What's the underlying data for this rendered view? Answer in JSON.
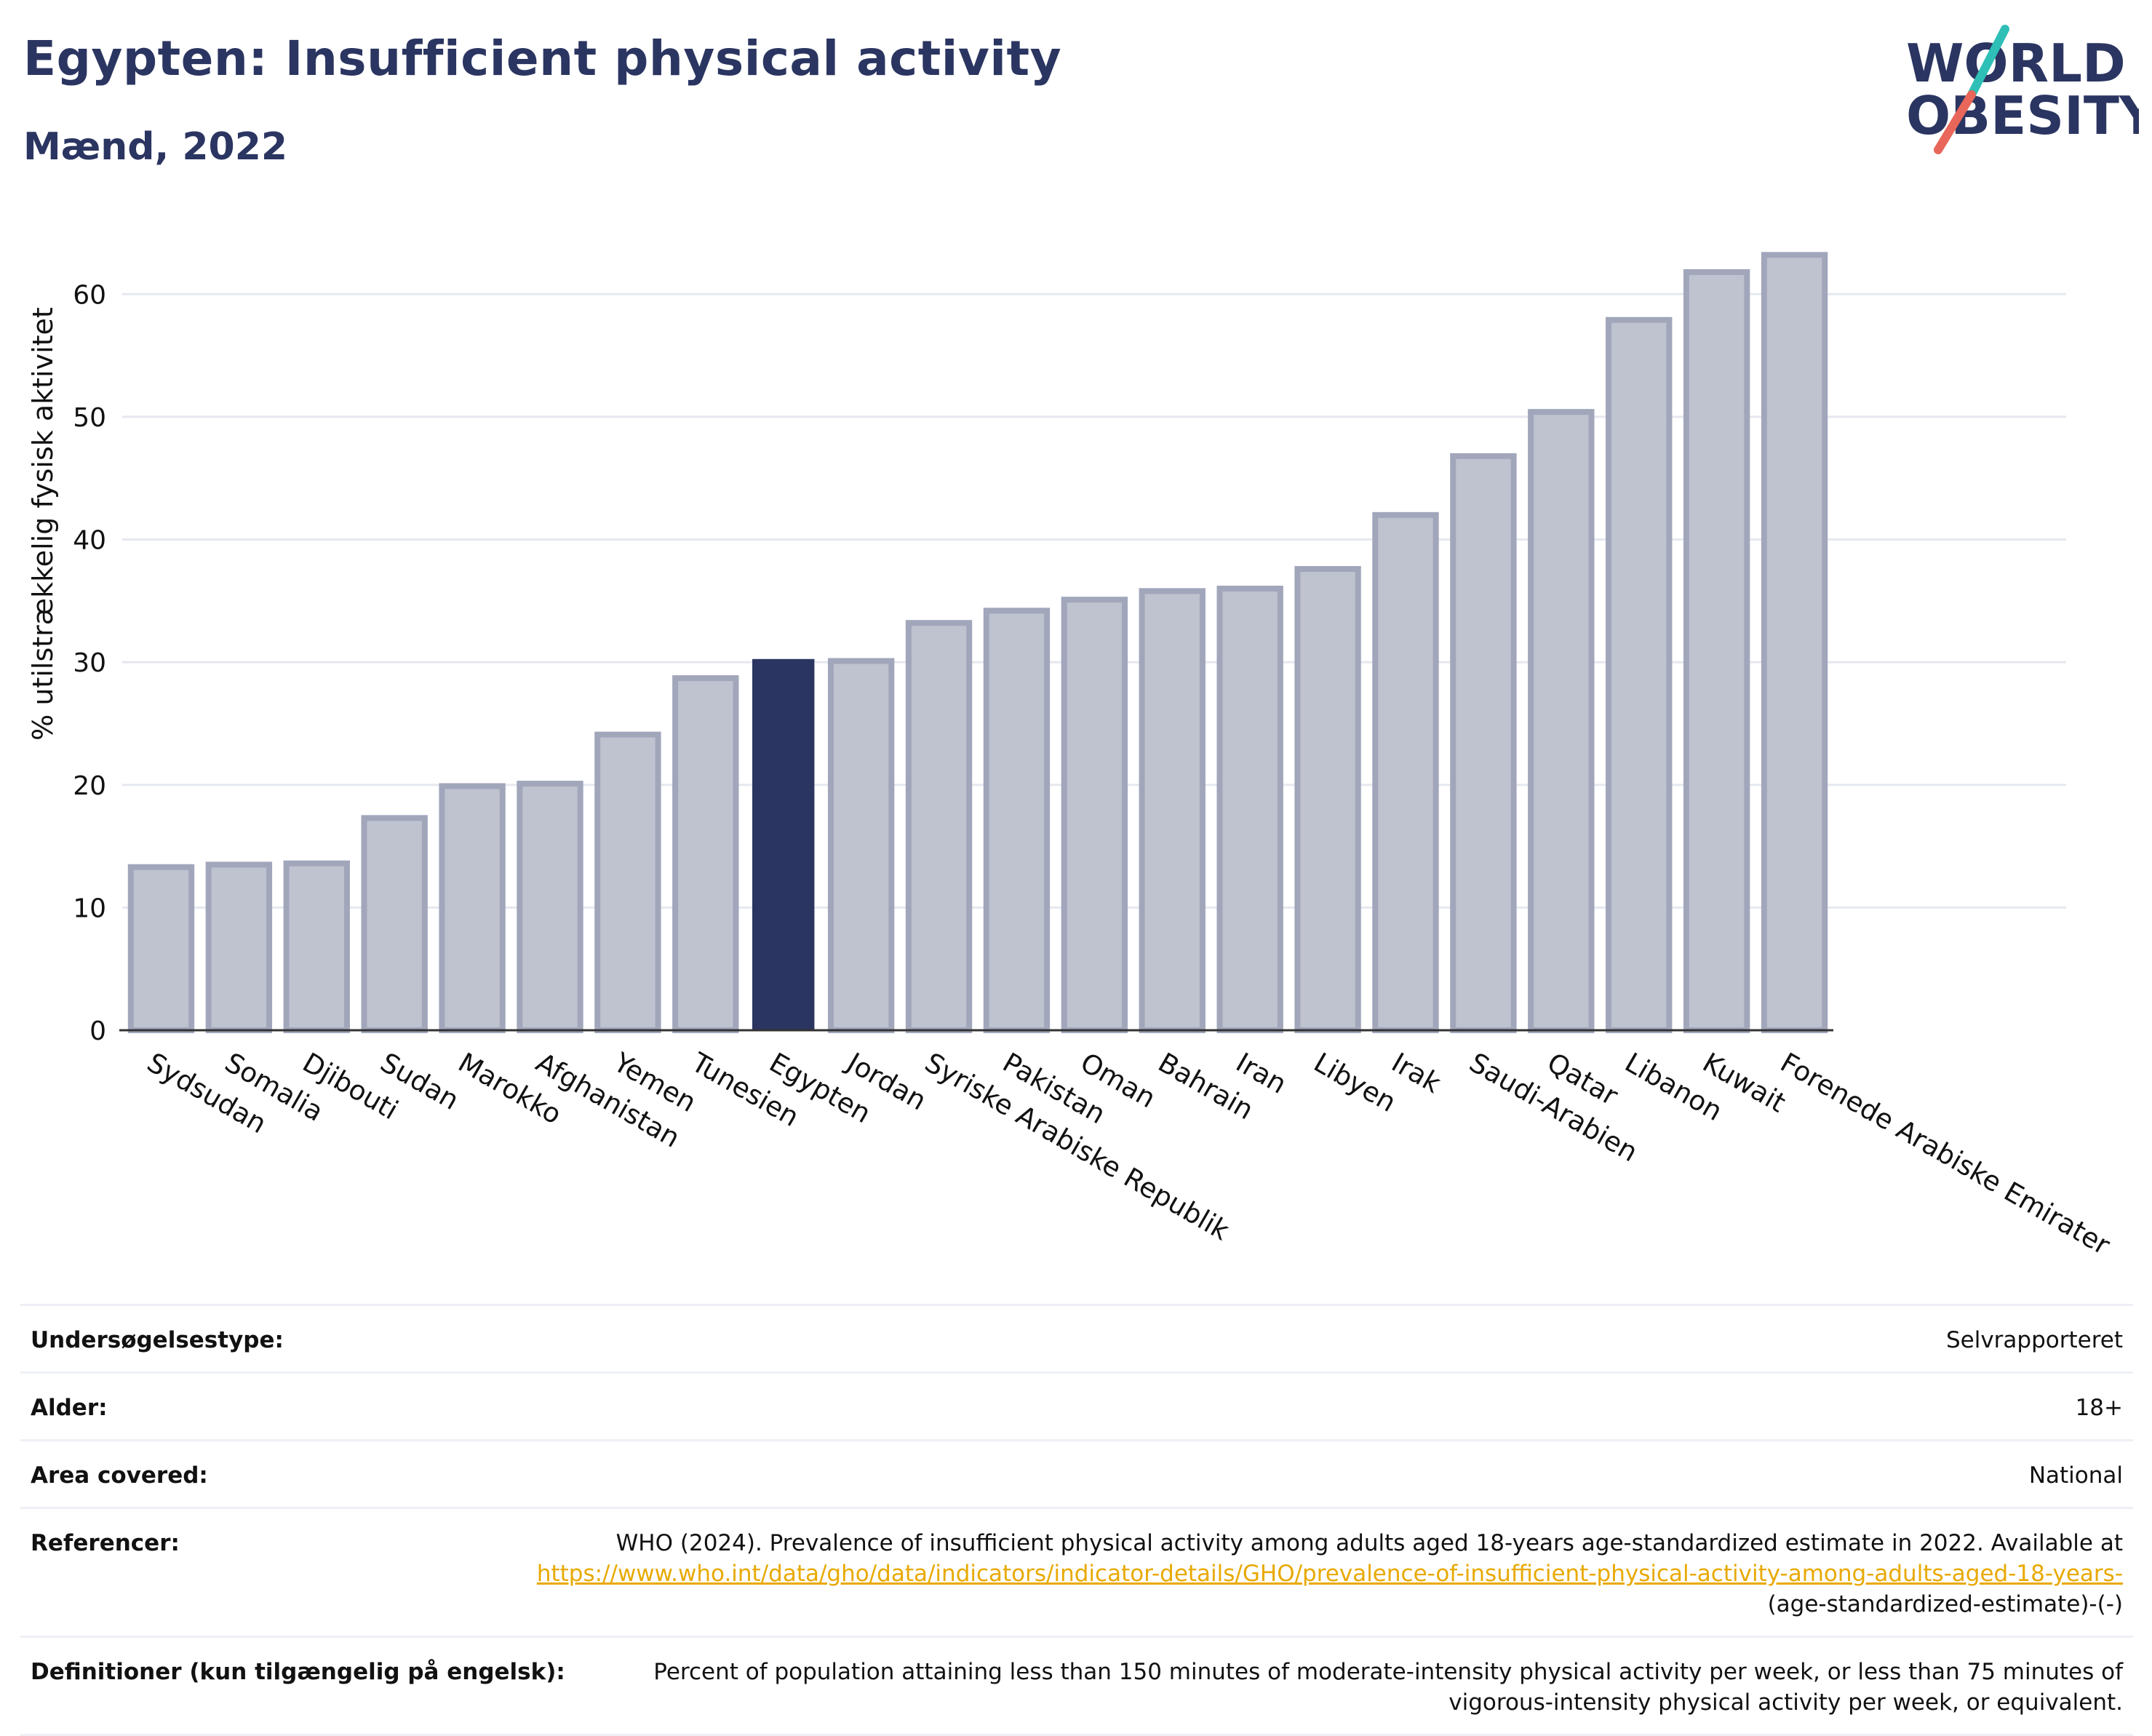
{
  "header": {
    "title": "Egypten: Insufficient physical activity",
    "subtitle": "Mænd, 2022"
  },
  "logo": {
    "line1": "WORLD",
    "line2": "OBESITY",
    "slash_colors": [
      "#2ebfb6",
      "#e8665a"
    ]
  },
  "colors": {
    "highlight": "#2b3561",
    "bar_fill": "#bfc2cf",
    "bar_stroke": "#a1a6bb",
    "grid": "#e6e8ef",
    "axis": "#333333"
  },
  "chart_data": {
    "type": "bar",
    "title": "",
    "xlabel": "",
    "ylabel": "% utilstrækkelig fysisk aktivitet",
    "ylim": [
      0,
      65
    ],
    "yticks": [
      0,
      10,
      20,
      30,
      40,
      50,
      60
    ],
    "grid": true,
    "highlight": "Egypten",
    "categories": [
      "Sydsudan",
      "Somalia",
      "Djibouti",
      "Sudan",
      "Marokko",
      "Afghanistan",
      "Yemen",
      "Tunesien",
      "Egypten",
      "Jordan",
      "Syriske Arabiske Republik",
      "Pakistan",
      "Oman",
      "Bahrain",
      "Iran",
      "Libyen",
      "Irak",
      "Saudi-Arabien",
      "Qatar",
      "Libanon",
      "Kuwait",
      "Forenede Arabiske Emirater"
    ],
    "values": [
      13.3,
      13.5,
      13.6,
      17.3,
      19.9,
      20.1,
      24.1,
      28.7,
      30.2,
      30.1,
      33.2,
      34.2,
      35.1,
      35.8,
      36.0,
      37.6,
      42.0,
      46.8,
      50.4,
      57.9,
      61.8,
      63.2
    ]
  },
  "info": {
    "survey_label": "Undersøgelsestype:",
    "survey_value": "Selvrapporteret",
    "age_label": "Alder:",
    "age_value": "18+",
    "area_label": "Area covered:",
    "area_value": "National",
    "ref_label": "Referencer:",
    "ref_text": "WHO (2024). Prevalence of insufficient physical activity among adults aged 18-years age-standardized estimate in 2022. Available at",
    "ref_link": "https://www.who.int/data/gho/data/indicators/indicator-details/GHO/prevalence-of-insufficient-physical-activity-among-adults-aged-18-years-",
    "ref_suffix": "(age-standardized-estimate)-(-)",
    "def_label": "Definitioner (kun tilgængelig på engelsk):",
    "def_value": "Percent of population attaining less than 150 minutes of moderate-intensity physical activity per week, or less than 75 minutes of vigorous-intensity physical activity per week, or equivalent."
  }
}
